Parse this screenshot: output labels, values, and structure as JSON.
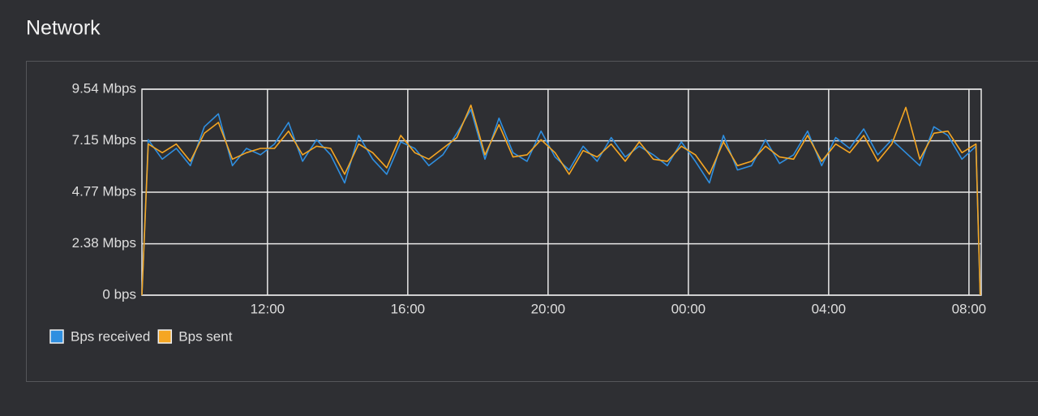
{
  "header": {
    "title": "Network"
  },
  "chart_data": {
    "type": "line",
    "x": [
      8.42,
      8.6,
      9.0,
      9.4,
      9.8,
      10.2,
      10.6,
      11.0,
      11.4,
      11.8,
      12.2,
      12.6,
      13.0,
      13.4,
      13.8,
      14.2,
      14.6,
      15.0,
      15.4,
      15.8,
      16.2,
      16.6,
      17.0,
      17.4,
      17.8,
      18.2,
      18.6,
      19.0,
      19.4,
      19.8,
      20.2,
      20.6,
      21.0,
      21.4,
      21.8,
      22.2,
      22.6,
      23.0,
      23.4,
      23.8,
      24.2,
      24.6,
      25.0,
      25.4,
      25.8,
      26.2,
      26.6,
      27.0,
      27.4,
      27.8,
      28.2,
      28.6,
      29.0,
      29.4,
      29.8,
      30.2,
      30.6,
      31.0,
      31.4,
      31.8,
      32.2,
      32.32
    ],
    "xlim": [
      8.42,
      32.35
    ],
    "xticks": [
      {
        "value": 12,
        "label": "12:00"
      },
      {
        "value": 16,
        "label": "16:00"
      },
      {
        "value": 20,
        "label": "20:00"
      },
      {
        "value": 24,
        "label": "00:00"
      },
      {
        "value": 28,
        "label": "04:00"
      },
      {
        "value": 32,
        "label": "08:00"
      }
    ],
    "ylim": [
      0,
      9.54
    ],
    "yticks": [
      {
        "value": 0,
        "label": "0 bps"
      },
      {
        "value": 2.38,
        "label": "2.38 Mbps"
      },
      {
        "value": 4.77,
        "label": "4.77 Mbps"
      },
      {
        "value": 7.15,
        "label": "7.15 Mbps"
      },
      {
        "value": 9.54,
        "label": "9.54 Mbps"
      }
    ],
    "grid": true,
    "series": [
      {
        "name": "Bps received",
        "color": "#2f8fe0",
        "values": [
          0,
          7.2,
          6.3,
          6.8,
          6.0,
          7.8,
          8.4,
          6.0,
          6.8,
          6.5,
          7.0,
          8.0,
          6.2,
          7.2,
          6.5,
          5.2,
          7.4,
          6.3,
          5.6,
          7.1,
          6.8,
          6.0,
          6.5,
          7.5,
          8.6,
          6.3,
          8.2,
          6.6,
          6.2,
          7.6,
          6.4,
          5.8,
          6.9,
          6.2,
          7.3,
          6.4,
          6.9,
          6.5,
          6.0,
          7.1,
          6.2,
          5.2,
          7.4,
          5.8,
          6.0,
          7.2,
          6.1,
          6.5,
          7.6,
          6.0,
          7.3,
          6.8,
          7.7,
          6.5,
          7.2,
          6.6,
          6.0,
          7.8,
          7.4,
          6.3,
          6.9,
          0
        ]
      },
      {
        "name": "Bps sent",
        "color": "#f5a623",
        "values": [
          0,
          7.0,
          6.6,
          7.0,
          6.2,
          7.5,
          8.0,
          6.3,
          6.6,
          6.8,
          6.8,
          7.6,
          6.5,
          6.9,
          6.8,
          5.6,
          7.0,
          6.6,
          5.9,
          7.4,
          6.6,
          6.3,
          6.8,
          7.3,
          8.8,
          6.5,
          7.9,
          6.4,
          6.5,
          7.2,
          6.6,
          5.6,
          6.7,
          6.4,
          7.0,
          6.2,
          7.1,
          6.3,
          6.2,
          6.9,
          6.5,
          5.6,
          7.1,
          6.0,
          6.2,
          6.9,
          6.4,
          6.3,
          7.4,
          6.2,
          7.0,
          6.6,
          7.4,
          6.2,
          7.0,
          8.7,
          6.3,
          7.5,
          7.6,
          6.6,
          7.0,
          0
        ]
      }
    ]
  }
}
